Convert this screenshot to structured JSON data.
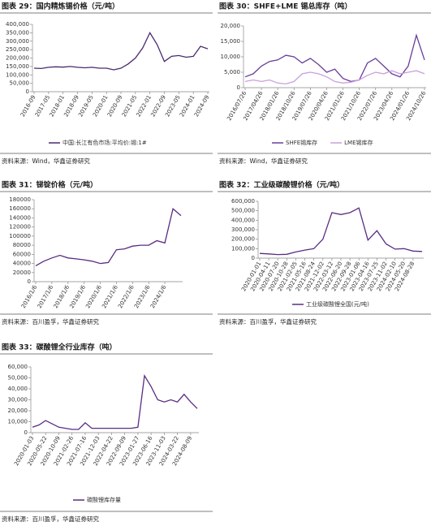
{
  "chart_data": [
    {
      "type": "line",
      "title": "图表 29：国内精炼锡价格（元/吨）",
      "source": "资料来源：Wind，华鑫证券研究",
      "categories": [
        "2016-09",
        null,
        "2017-05",
        null,
        "2018-01",
        null,
        "2018-09",
        null,
        "2019-05",
        null,
        "2020-01",
        null,
        "2020-09",
        null,
        "2021-05",
        null,
        "2022-01",
        null,
        "2022-09",
        null,
        "2023-05",
        null,
        "2024-01",
        null,
        "2024-09"
      ],
      "series": [
        {
          "name": "中国:长江有色市场:平均价:锡:1#",
          "color": "#4b2a6e",
          "values": [
            140000,
            138000,
            145000,
            148000,
            146000,
            150000,
            145000,
            142000,
            145000,
            140000,
            140000,
            130000,
            140000,
            165000,
            200000,
            260000,
            350000,
            280000,
            180000,
            210000,
            215000,
            205000,
            210000,
            270000,
            255000
          ]
        }
      ],
      "ylim": [
        0,
        400000
      ],
      "yticks": [
        0,
        {
          "value": 50000,
          "label": "50,000"
        },
        {
          "value": 100000,
          "label": "100,000"
        },
        {
          "value": 150000,
          "label": "150,000"
        },
        {
          "value": 200000,
          "label": "200,000"
        },
        {
          "value": 250000,
          "label": "250,000"
        },
        {
          "value": 300000,
          "label": "300,000"
        },
        {
          "value": 350000,
          "label": "350,000"
        },
        {
          "value": 400000,
          "label": "400,000"
        }
      ]
    },
    {
      "type": "line",
      "title": "图表 30：SHFE+LME 锡总库存（吨）",
      "source": "资料来源：Wind，华鑫证券研究",
      "categories": [
        "2016/07/26",
        null,
        "2017/04/26",
        null,
        "2018/01/26",
        null,
        "2018/10/26",
        null,
        "2019/07/26",
        null,
        "2020/04/26",
        null,
        "2021/01/26",
        null,
        "2021/10/26",
        null,
        "2022/07/26",
        null,
        "2023/04/26",
        null,
        "2024/01/26",
        null,
        "2024/10/26"
      ],
      "series": [
        {
          "name": "SHFE锡库存",
          "color": "#6a3d9a",
          "values": [
            3500,
            4500,
            7000,
            8500,
            9000,
            10500,
            10000,
            8000,
            9500,
            7500,
            5000,
            6000,
            3000,
            2000,
            2500,
            8000,
            9500,
            7000,
            4500,
            3500,
            7000,
            17000,
            9000
          ]
        },
        {
          "name": "LME锡库存",
          "color": "#c9a0dc",
          "values": [
            2000,
            2500,
            2000,
            2500,
            1500,
            1200,
            2000,
            4500,
            5000,
            4500,
            3500,
            2000,
            1500,
            1800,
            2500,
            4000,
            5000,
            4500,
            5500,
            4500,
            5000,
            5500,
            4500
          ]
        }
      ],
      "ylim": [
        0,
        20000
      ],
      "yticks": [
        0,
        {
          "value": 5000,
          "label": "5,000"
        },
        {
          "value": 10000,
          "label": "10,000"
        },
        {
          "value": 15000,
          "label": "15,000"
        },
        {
          "value": 20000,
          "label": "20,000"
        }
      ]
    },
    {
      "type": "line",
      "title": "图表 31：锑锭价格（元/吨）",
      "source": "资料来源：百川盈孚，华鑫证券研究",
      "categories": [
        "2016/1/6",
        null,
        "2017/1/6",
        null,
        "2018/1/6",
        null,
        "2019/1/6",
        null,
        "2020/1/6",
        null,
        "2021/1/6",
        null,
        "2022/1/6",
        null,
        "2023/1/6",
        null,
        "2024/1/6",
        null,
        null
      ],
      "series": [
        {
          "name": null,
          "color": "#5a2d82",
          "values": [
            35000,
            45000,
            52000,
            58000,
            52000,
            50000,
            48000,
            45000,
            40000,
            42000,
            70000,
            72000,
            78000,
            80000,
            80000,
            90000,
            85000,
            160000,
            145000
          ]
        }
      ],
      "ylim": [
        0,
        180000
      ],
      "yticks": [
        0,
        20000,
        40000,
        60000,
        80000,
        100000,
        120000,
        140000,
        160000,
        180000
      ]
    },
    {
      "type": "line",
      "title": "图表 32：工业级碳酸锂价格（元/吨）",
      "source": "资料来源：百川盈孚，华鑫证券研究",
      "categories": [
        "2020-01-01",
        "2020-04-11",
        "2020-07-20",
        "2020-10-28",
        "2021-02-05",
        "2021-05-16",
        "2021-08-24",
        "2021-12-02",
        "2022-03-12",
        "2022-06-20",
        "2022-09-28",
        "2023-01-06",
        "2023-04-16",
        "2023-07-25",
        "2023-11-02",
        "2024-02-10",
        "2024-05-20",
        "2024-08-28",
        null
      ],
      "series": [
        {
          "name": "工业级碳酸锂全国(元/吨)",
          "color": "#5a2d82",
          "values": [
            50000,
            45000,
            38000,
            40000,
            65000,
            85000,
            100000,
            200000,
            480000,
            460000,
            480000,
            530000,
            190000,
            290000,
            150000,
            95000,
            100000,
            75000,
            70000
          ]
        }
      ],
      "ylim": [
        0,
        600000
      ],
      "yticks": [
        0,
        {
          "value": 100000,
          "label": "100,000"
        },
        {
          "value": 200000,
          "label": "200,000"
        },
        {
          "value": 300000,
          "label": "300,000"
        },
        {
          "value": 400000,
          "label": "400,000"
        },
        {
          "value": 500000,
          "label": "500,000"
        },
        {
          "value": 600000,
          "label": "600,000"
        }
      ]
    },
    {
      "type": "line",
      "title": "图表 33：碳酸锂全行业库存（吨）",
      "source": "资料来源：百川盈孚，华鑫证券研究",
      "categories": [
        "2020-01-03",
        null,
        "2020-05-22",
        null,
        "2020-10-09",
        null,
        "2021-02-26",
        null,
        "2021-07-16",
        null,
        "2021-12-03",
        null,
        "2022-04-22",
        null,
        "2022-09-09",
        null,
        "2023-01-27",
        null,
        "2023-06-16",
        null,
        "2023-11-03",
        null,
        "2024-03-22",
        null,
        "2024-08-09",
        null
      ],
      "series": [
        {
          "name": "碳酸锂库存量",
          "color": "#5a2d82",
          "values": [
            5000,
            7000,
            11000,
            8000,
            5000,
            4000,
            3000,
            3000,
            9000,
            4000,
            4000,
            4000,
            4000,
            4000,
            4000,
            4000,
            5000,
            52000,
            42000,
            30000,
            28000,
            30000,
            28000,
            35000,
            28000,
            22000
          ]
        }
      ],
      "ylim": [
        0,
        60000
      ],
      "yticks": [
        0,
        {
          "value": 10000,
          "label": "10,000"
        },
        {
          "value": 20000,
          "label": "20,000"
        },
        {
          "value": 30000,
          "label": "30,000"
        },
        {
          "value": 40000,
          "label": "40,000"
        },
        {
          "value": 50000,
          "label": "50,000"
        },
        {
          "value": 60000,
          "label": "60,000"
        }
      ]
    }
  ]
}
